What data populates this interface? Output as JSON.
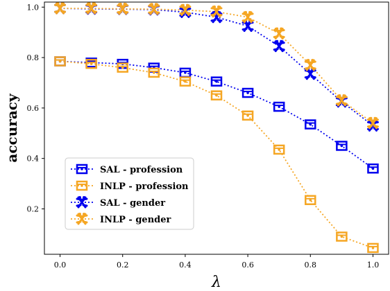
{
  "chart_data": {
    "type": "line",
    "title": "",
    "xlabel": "λ",
    "ylabel": "accuracy",
    "xlim": [
      -0.05,
      1.05
    ],
    "ylim": [
      0.02,
      1.02
    ],
    "x_ticks": [
      0.0,
      0.2,
      0.4,
      0.6,
      0.8,
      1.0
    ],
    "x_tick_labels": [
      "0.0",
      "0.2",
      "0.4",
      "0.6",
      "0.8",
      "1.0"
    ],
    "y_ticks": [
      0.2,
      0.4,
      0.6,
      0.8,
      1.0
    ],
    "y_tick_labels": [
      "0.2",
      "0.4",
      "0.6",
      "0.8",
      "1.0"
    ],
    "grid": false,
    "legend_position": "lower-left",
    "x": [
      0.0,
      0.1,
      0.2,
      0.3,
      0.4,
      0.5,
      0.6,
      0.7,
      0.8,
      0.9,
      1.0
    ],
    "series": [
      {
        "name": "SAL - profession",
        "color": "#0000ee",
        "marker": "box-icon",
        "values": [
          0.785,
          0.78,
          0.775,
          0.76,
          0.74,
          0.705,
          0.66,
          0.605,
          0.535,
          0.45,
          0.36
        ]
      },
      {
        "name": "INLP - profession",
        "color": "#f5a623",
        "marker": "box-icon",
        "values": [
          0.785,
          0.775,
          0.76,
          0.74,
          0.705,
          0.65,
          0.57,
          0.435,
          0.235,
          0.09,
          0.045
        ]
      },
      {
        "name": "SAL - gender",
        "color": "#0000ee",
        "marker": "figure-icon",
        "values": [
          0.995,
          0.993,
          0.992,
          0.99,
          0.98,
          0.96,
          0.925,
          0.845,
          0.735,
          0.625,
          0.53
        ]
      },
      {
        "name": "INLP - gender",
        "color": "#f5a623",
        "marker": "figure-icon",
        "values": [
          0.995,
          0.995,
          0.993,
          0.992,
          0.988,
          0.982,
          0.96,
          0.895,
          0.77,
          0.63,
          0.54
        ]
      }
    ]
  }
}
